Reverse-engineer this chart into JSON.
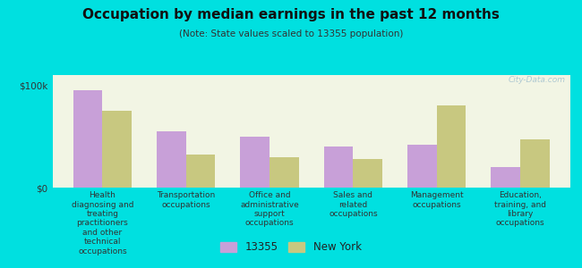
{
  "title": "Occupation by median earnings in the past 12 months",
  "subtitle": "(Note: State values scaled to 13355 population)",
  "categories": [
    "Health\ndiagnosing and\ntreating\npractitioners\nand other\ntechnical\noccupations",
    "Transportation\noccupations",
    "Office and\nadministrative\nsupport\noccupations",
    "Sales and\nrelated\noccupations",
    "Management\noccupations",
    "Education,\ntraining, and\nlibrary\noccupations"
  ],
  "values_13355": [
    95000,
    55000,
    50000,
    40000,
    42000,
    20000
  ],
  "values_ny": [
    75000,
    32000,
    30000,
    28000,
    80000,
    47000
  ],
  "color_13355": "#c8a0d8",
  "color_ny": "#c8c880",
  "background_chart": "#f2f5e4",
  "background_outer": "#00e0e0",
  "ylim": [
    0,
    110000
  ],
  "yticks": [
    0,
    100000
  ],
  "ytick_labels": [
    "$0",
    "$100k"
  ],
  "legend_13355": "13355",
  "legend_ny": "New York",
  "watermark": "City-Data.com"
}
